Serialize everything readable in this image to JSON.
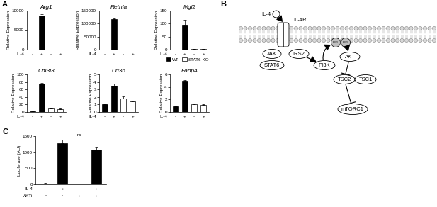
{
  "panel_labels": [
    "A",
    "B",
    "C"
  ],
  "chart_data": [
    {
      "type": "bar",
      "title": "Arg1",
      "ylabel": "Relative Expression",
      "ylim": [
        0,
        10000
      ],
      "yticks": [
        0,
        5000,
        10000
      ],
      "x_rows": [
        {
          "label": "IL-4",
          "values": [
            "-",
            "+",
            "-",
            "+"
          ]
        }
      ],
      "series": [
        {
          "name": "WT",
          "color": "#000000",
          "values": [
            1,
            8700,
            null,
            null
          ],
          "errors": [
            0,
            400,
            null,
            null
          ]
        },
        {
          "name": "STAT6-KO",
          "color": "#ffffff",
          "values": [
            null,
            null,
            1,
            1
          ],
          "errors": [
            null,
            null,
            0,
            0
          ]
        }
      ]
    },
    {
      "type": "bar",
      "title": "Retnla",
      "ylabel": "Relative Expression",
      "ylim": [
        0,
        150000
      ],
      "yticks": [
        0,
        50000,
        100000,
        150000
      ],
      "x_rows": [
        {
          "label": "IL-4",
          "values": [
            "-",
            "+",
            "-",
            "+"
          ]
        }
      ],
      "series": [
        {
          "name": "WT",
          "color": "#000000",
          "values": [
            1,
            118000,
            null,
            null
          ],
          "errors": [
            0,
            1500,
            null,
            null
          ]
        },
        {
          "name": "STAT6-KO",
          "color": "#ffffff",
          "values": [
            null,
            null,
            1,
            1
          ],
          "errors": [
            null,
            null,
            0,
            0
          ]
        }
      ]
    },
    {
      "type": "bar",
      "title": "Mgl2",
      "ylabel": "Relative Expression",
      "ylim": [
        0,
        150
      ],
      "yticks": [
        0,
        50,
        100,
        150
      ],
      "legend": "upper right",
      "x_rows": [
        {
          "label": "IL-4",
          "values": [
            "-",
            "+",
            "-",
            "+"
          ]
        }
      ],
      "series": [
        {
          "name": "WT",
          "color": "#000000",
          "values": [
            1,
            95,
            null,
            null
          ],
          "errors": [
            0,
            20,
            null,
            null
          ]
        },
        {
          "name": "STAT6-KO",
          "color": "#ffffff",
          "values": [
            null,
            null,
            2,
            3
          ],
          "errors": [
            null,
            null,
            0.5,
            0.5
          ]
        }
      ]
    },
    {
      "type": "bar",
      "title": "Chi3l3",
      "ylabel": "Relative Expression",
      "ylim": [
        0,
        100
      ],
      "yticks": [
        0,
        20,
        40,
        60,
        80,
        100
      ],
      "x_rows": [
        {
          "label": "IL-4",
          "values": [
            "-",
            "+",
            "-",
            "+"
          ]
        }
      ],
      "series": [
        {
          "name": "WT",
          "color": "#000000",
          "values": [
            2,
            75,
            null,
            null
          ],
          "errors": [
            0.5,
            2,
            null,
            null
          ]
        },
        {
          "name": "STAT6-KO",
          "color": "#ffffff",
          "values": [
            null,
            null,
            9,
            8
          ],
          "errors": [
            null,
            null,
            1,
            0.5
          ]
        }
      ]
    },
    {
      "type": "bar",
      "title": "Cd36",
      "ylabel": "Relative Expression",
      "ylim": [
        0,
        5
      ],
      "yticks": [
        0,
        1,
        2,
        3,
        4,
        5
      ],
      "x_rows": [
        {
          "label": "IL-4",
          "values": [
            "-",
            "+",
            "-",
            "+"
          ]
        }
      ],
      "series": [
        {
          "name": "WT",
          "color": "#000000",
          "values": [
            1,
            3.5,
            null,
            null
          ],
          "errors": [
            0.02,
            0.3,
            null,
            null
          ]
        },
        {
          "name": "STAT6-KO",
          "color": "#ffffff",
          "values": [
            null,
            null,
            1.8,
            1.4
          ],
          "errors": [
            null,
            null,
            0.3,
            0.1
          ]
        }
      ]
    },
    {
      "type": "bar",
      "title": "Fabp4",
      "ylabel": "Relative Expression",
      "ylim": [
        0,
        6
      ],
      "yticks": [
        0,
        2,
        4,
        6
      ],
      "x_rows": [
        {
          "label": "IL-4",
          "values": [
            "-",
            "+",
            "-",
            "+"
          ]
        }
      ],
      "series": [
        {
          "name": "WT",
          "color": "#000000",
          "values": [
            0.9,
            5.0,
            null,
            null
          ],
          "errors": [
            0.05,
            0.15,
            null,
            null
          ]
        },
        {
          "name": "STAT6-KO",
          "color": "#ffffff",
          "values": [
            null,
            null,
            1.3,
            1.1
          ],
          "errors": [
            null,
            null,
            0.1,
            0.1
          ]
        }
      ]
    },
    {
      "type": "bar",
      "ylabel": "Luciferase (AU)",
      "ylim": [
        0,
        1500
      ],
      "yticks": [
        0,
        500,
        1000,
        1500
      ],
      "x_rows": [
        {
          "label": "IL-4",
          "values": [
            "-",
            "+",
            "-",
            "+"
          ]
        },
        {
          "label": "AKTi",
          "values": [
            "-",
            "-",
            "+",
            "+"
          ]
        }
      ],
      "series": [
        {
          "color": "#000000",
          "values": [
            30,
            1270,
            20,
            1070
          ],
          "errors": [
            5,
            120,
            5,
            80
          ]
        }
      ],
      "annotations": [
        {
          "text": "ns",
          "from": 1,
          "to": 3,
          "y": 1450
        }
      ]
    }
  ],
  "diagram": {
    "nodes": [
      "IL-4",
      "IL-4R",
      "JAK",
      "STAT6",
      "IRS2",
      "PI3K",
      "PIP3",
      "PIP3",
      "AKT",
      "TSC2",
      "TSC1",
      "mTORC1"
    ],
    "edges": [
      {
        "from": 0,
        "to": 1,
        "type": "activates"
      },
      {
        "from": 4,
        "to": 5,
        "type": "activates"
      },
      {
        "from": 5,
        "to": 6,
        "type": "activates"
      },
      {
        "from": 7,
        "to": 8,
        "type": "activates"
      },
      {
        "from": 8,
        "to": 9,
        "type": "inhibits"
      },
      {
        "from": 9,
        "to": 11,
        "type": "inhibits"
      }
    ]
  }
}
